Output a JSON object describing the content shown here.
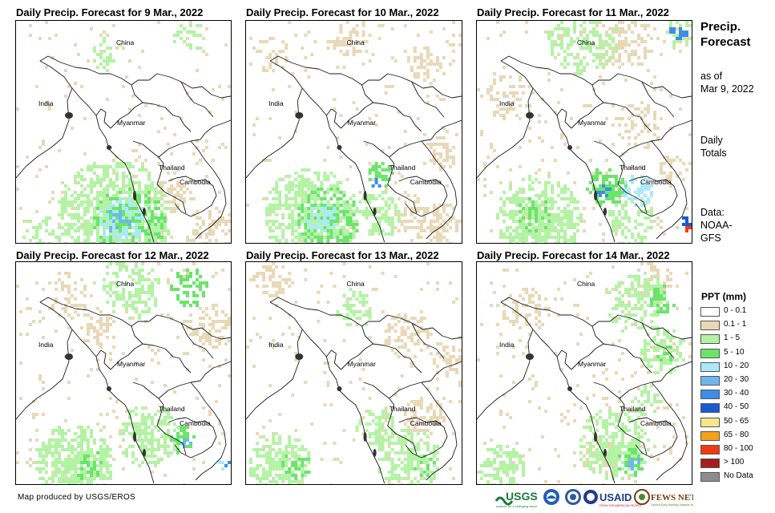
{
  "panels": [
    {
      "title": "Daily Precip. Forecast for 9 Mar., 2022"
    },
    {
      "title": "Daily Precip. Forecast for 10 Mar., 2022"
    },
    {
      "title": "Daily Precip. Forecast for 11 Mar., 2022"
    },
    {
      "title": "Daily Precip. Forecast for 12 Mar., 2022"
    },
    {
      "title": "Daily Precip. Forecast for 13 Mar., 2022"
    },
    {
      "title": "Daily Precip. Forecast for 14 Mar., 2022"
    }
  ],
  "map_labels": {
    "china": "China",
    "india": "India",
    "myanmar": "Myanmar",
    "thailand": "Thailand",
    "cambodia": "Cambodia"
  },
  "sidebar": {
    "title": "Precip.\nForecast",
    "as_of_label": "as of",
    "as_of_date": "Mar 9, 2022",
    "daily_label": "Daily",
    "totals_label": "Totals",
    "data_label": "Data:",
    "data_source_1": "NOAA-",
    "data_source_2": "GFS"
  },
  "legend": {
    "title": "PPT (mm)",
    "items": [
      {
        "label": "0 - 0.1",
        "color": "#ffffff"
      },
      {
        "label": "0.1 - 1",
        "color": "#e8d8b6"
      },
      {
        "label": "1 - 5",
        "color": "#b4f2a4"
      },
      {
        "label": "5 - 10",
        "color": "#6ae56a"
      },
      {
        "label": "10 - 20",
        "color": "#aaeaf8"
      },
      {
        "label": "20 - 30",
        "color": "#6cb8ee"
      },
      {
        "label": "30 - 40",
        "color": "#3c8ee8"
      },
      {
        "label": "40 - 50",
        "color": "#1c5ad4"
      },
      {
        "label": "50 - 65",
        "color": "#f8e68a"
      },
      {
        "label": "65 - 80",
        "color": "#f6a018"
      },
      {
        "label": "80 - 100",
        "color": "#f23a12"
      },
      {
        "label": "> 100",
        "color": "#a81c1c"
      },
      {
        "label": "No Data",
        "color": "#8c8c8c"
      }
    ]
  },
  "footer": {
    "credit": "Map produced by USGS/EROS",
    "logo_usgs": "USGS",
    "logo_usaid": "USAID",
    "logo_fewsnet": "FEWS NET"
  }
}
